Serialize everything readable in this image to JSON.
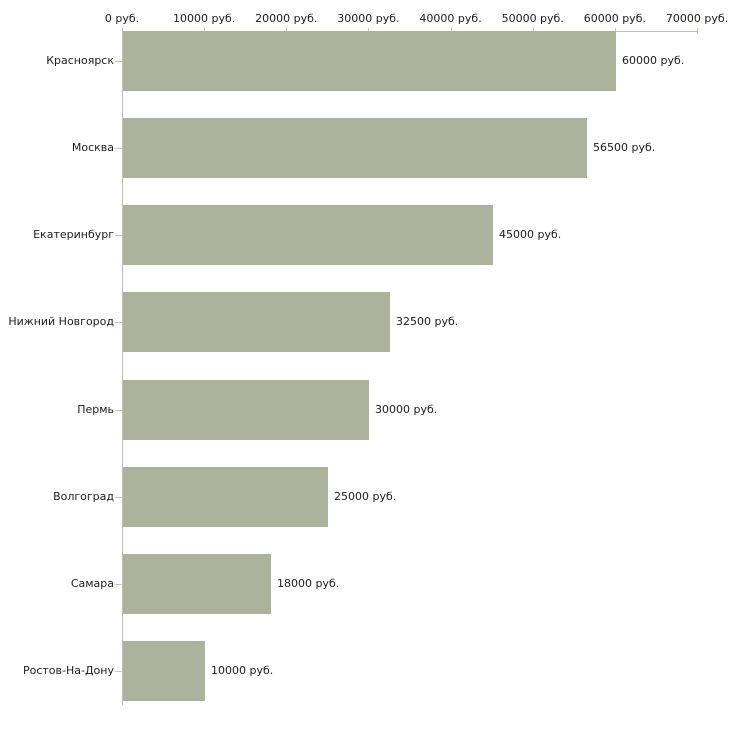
{
  "chart_data": {
    "type": "bar",
    "orientation": "horizontal",
    "title": "",
    "xlabel": "",
    "ylabel": "",
    "grid": false,
    "unit": "руб.",
    "categories": [
      "Красноярск",
      "Москва",
      "Екатеринбург",
      "Нижний Новгород",
      "Пермь",
      "Волгоград",
      "Самара",
      "Ростов-На-Дону"
    ],
    "values": [
      60000,
      56500,
      45000,
      32500,
      30000,
      25000,
      18000,
      10000
    ],
    "value_labels": [
      "60000 руб.",
      "56500 руб.",
      "45000 руб.",
      "32500 руб.",
      "30000 руб.",
      "25000 руб.",
      "18000 руб.",
      "10000 руб."
    ],
    "x_axis": {
      "position": "top",
      "min": 0,
      "max": 70000,
      "tick_step": 10000,
      "tick_values": [
        0,
        10000,
        20000,
        30000,
        40000,
        50000,
        60000,
        70000
      ],
      "tick_labels": [
        "0 руб.",
        "10000 руб.",
        "20000 руб.",
        "30000 руб.",
        "40000 руб.",
        "50000 руб.",
        "60000 руб.",
        "70000 руб."
      ]
    },
    "colors": {
      "bar": "#acb29b",
      "tick": "#cdc8a2",
      "axis": "#bdbdbd",
      "text": "#1c1c1c",
      "background": "#ffffff"
    }
  }
}
